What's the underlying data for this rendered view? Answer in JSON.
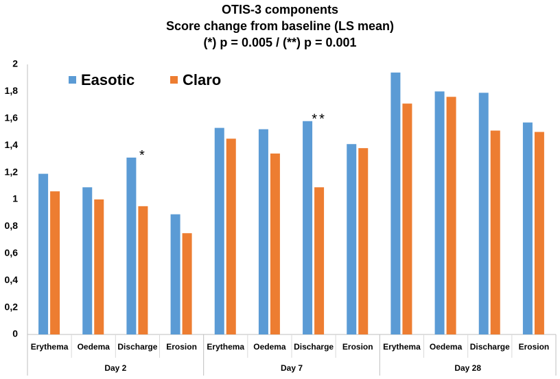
{
  "chart_data": {
    "type": "bar",
    "title": [
      "OTIS-3 components",
      "Score change from baseline (LS mean)",
      "(*) p = 0.005 / (**) p = 0.001"
    ],
    "groups": [
      {
        "name": "Day 2",
        "categories": [
          "Erythema",
          "Oedema",
          "Discharge",
          "Erosion"
        ]
      },
      {
        "name": "Day 7",
        "categories": [
          "Erythema",
          "Oedema",
          "Discharge",
          "Erosion"
        ]
      },
      {
        "name": "Day 28",
        "categories": [
          "Erythema",
          "Oedema",
          "Discharge",
          "Erosion"
        ]
      }
    ],
    "series": [
      {
        "name": "Easotic",
        "color": "#5b9bd5",
        "values": [
          1.19,
          1.09,
          1.31,
          0.89,
          1.53,
          1.52,
          1.58,
          1.41,
          1.94,
          1.8,
          1.79,
          1.57
        ]
      },
      {
        "name": "Claro",
        "color": "#ed7d31",
        "values": [
          1.06,
          1.0,
          0.95,
          0.75,
          1.45,
          1.34,
          1.09,
          1.38,
          1.71,
          1.76,
          1.51,
          1.5
        ]
      }
    ],
    "annotations": [
      null,
      null,
      "*",
      null,
      null,
      null,
      "**",
      null,
      null,
      null,
      null,
      null
    ],
    "ylim": [
      0,
      2
    ],
    "yticks": [
      0,
      {
        "value": 0.2,
        "label": "0,2"
      },
      {
        "value": 0.4,
        "label": "0,4"
      },
      {
        "value": 0.6,
        "label": "0,6"
      },
      {
        "value": 0.8,
        "label": "0,8"
      },
      1,
      {
        "value": 1.2,
        "label": "1,2"
      },
      {
        "value": 1.4,
        "label": "1,4"
      },
      {
        "value": 1.6,
        "label": "1,6"
      },
      {
        "value": 1.8,
        "label": "1,8"
      },
      2
    ],
    "grid": false,
    "legend": "top-left"
  }
}
